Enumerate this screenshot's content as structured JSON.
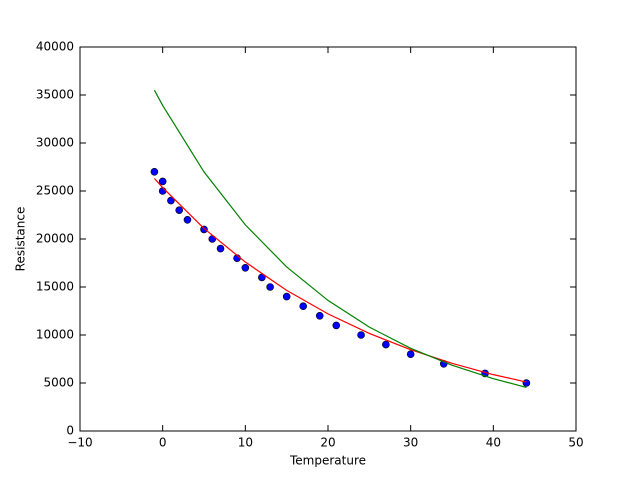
{
  "chart_data": {
    "type": "scatter",
    "x_label": "Temperature",
    "y_label": "Resistance",
    "xlim": [
      -10,
      50
    ],
    "ylim": [
      0,
      40000
    ],
    "xticks": [
      {
        "value": -10,
        "label": "−10"
      },
      0,
      10,
      20,
      30,
      40,
      50
    ],
    "yticks": [
      0,
      5000,
      10000,
      15000,
      20000,
      25000,
      30000,
      35000,
      40000
    ],
    "series": [
      {
        "mode": "markers",
        "color": "#0000ff",
        "x": [
          -1,
          0,
          0,
          1,
          2,
          3,
          5,
          6,
          7,
          9,
          10,
          12,
          13,
          15,
          17,
          19,
          21,
          24,
          27,
          30,
          34,
          39,
          44
        ],
        "values": [
          27000,
          26000,
          25000,
          24000,
          23000,
          22000,
          21000,
          20000,
          19000,
          18000,
          17000,
          16000,
          15000,
          14000,
          13000,
          12000,
          11000,
          10000,
          9000,
          8000,
          7000,
          6000,
          5000
        ]
      },
      {
        "mode": "line",
        "color": "#ff0000",
        "x": [
          -1,
          0,
          5,
          10,
          15,
          20,
          25,
          30,
          35,
          40,
          44
        ],
        "values": [
          26300,
          25360,
          21100,
          17600,
          14650,
          12200,
          10160,
          8470,
          7050,
          5870,
          5100
        ]
      },
      {
        "mode": "line",
        "color": "#008000",
        "x": [
          -1,
          0,
          5,
          10,
          15,
          20,
          25,
          30,
          35,
          40,
          44
        ],
        "values": [
          35500,
          33910,
          26990,
          21470,
          17090,
          13600,
          10820,
          8610,
          6850,
          5450,
          4540
        ]
      }
    ]
  }
}
